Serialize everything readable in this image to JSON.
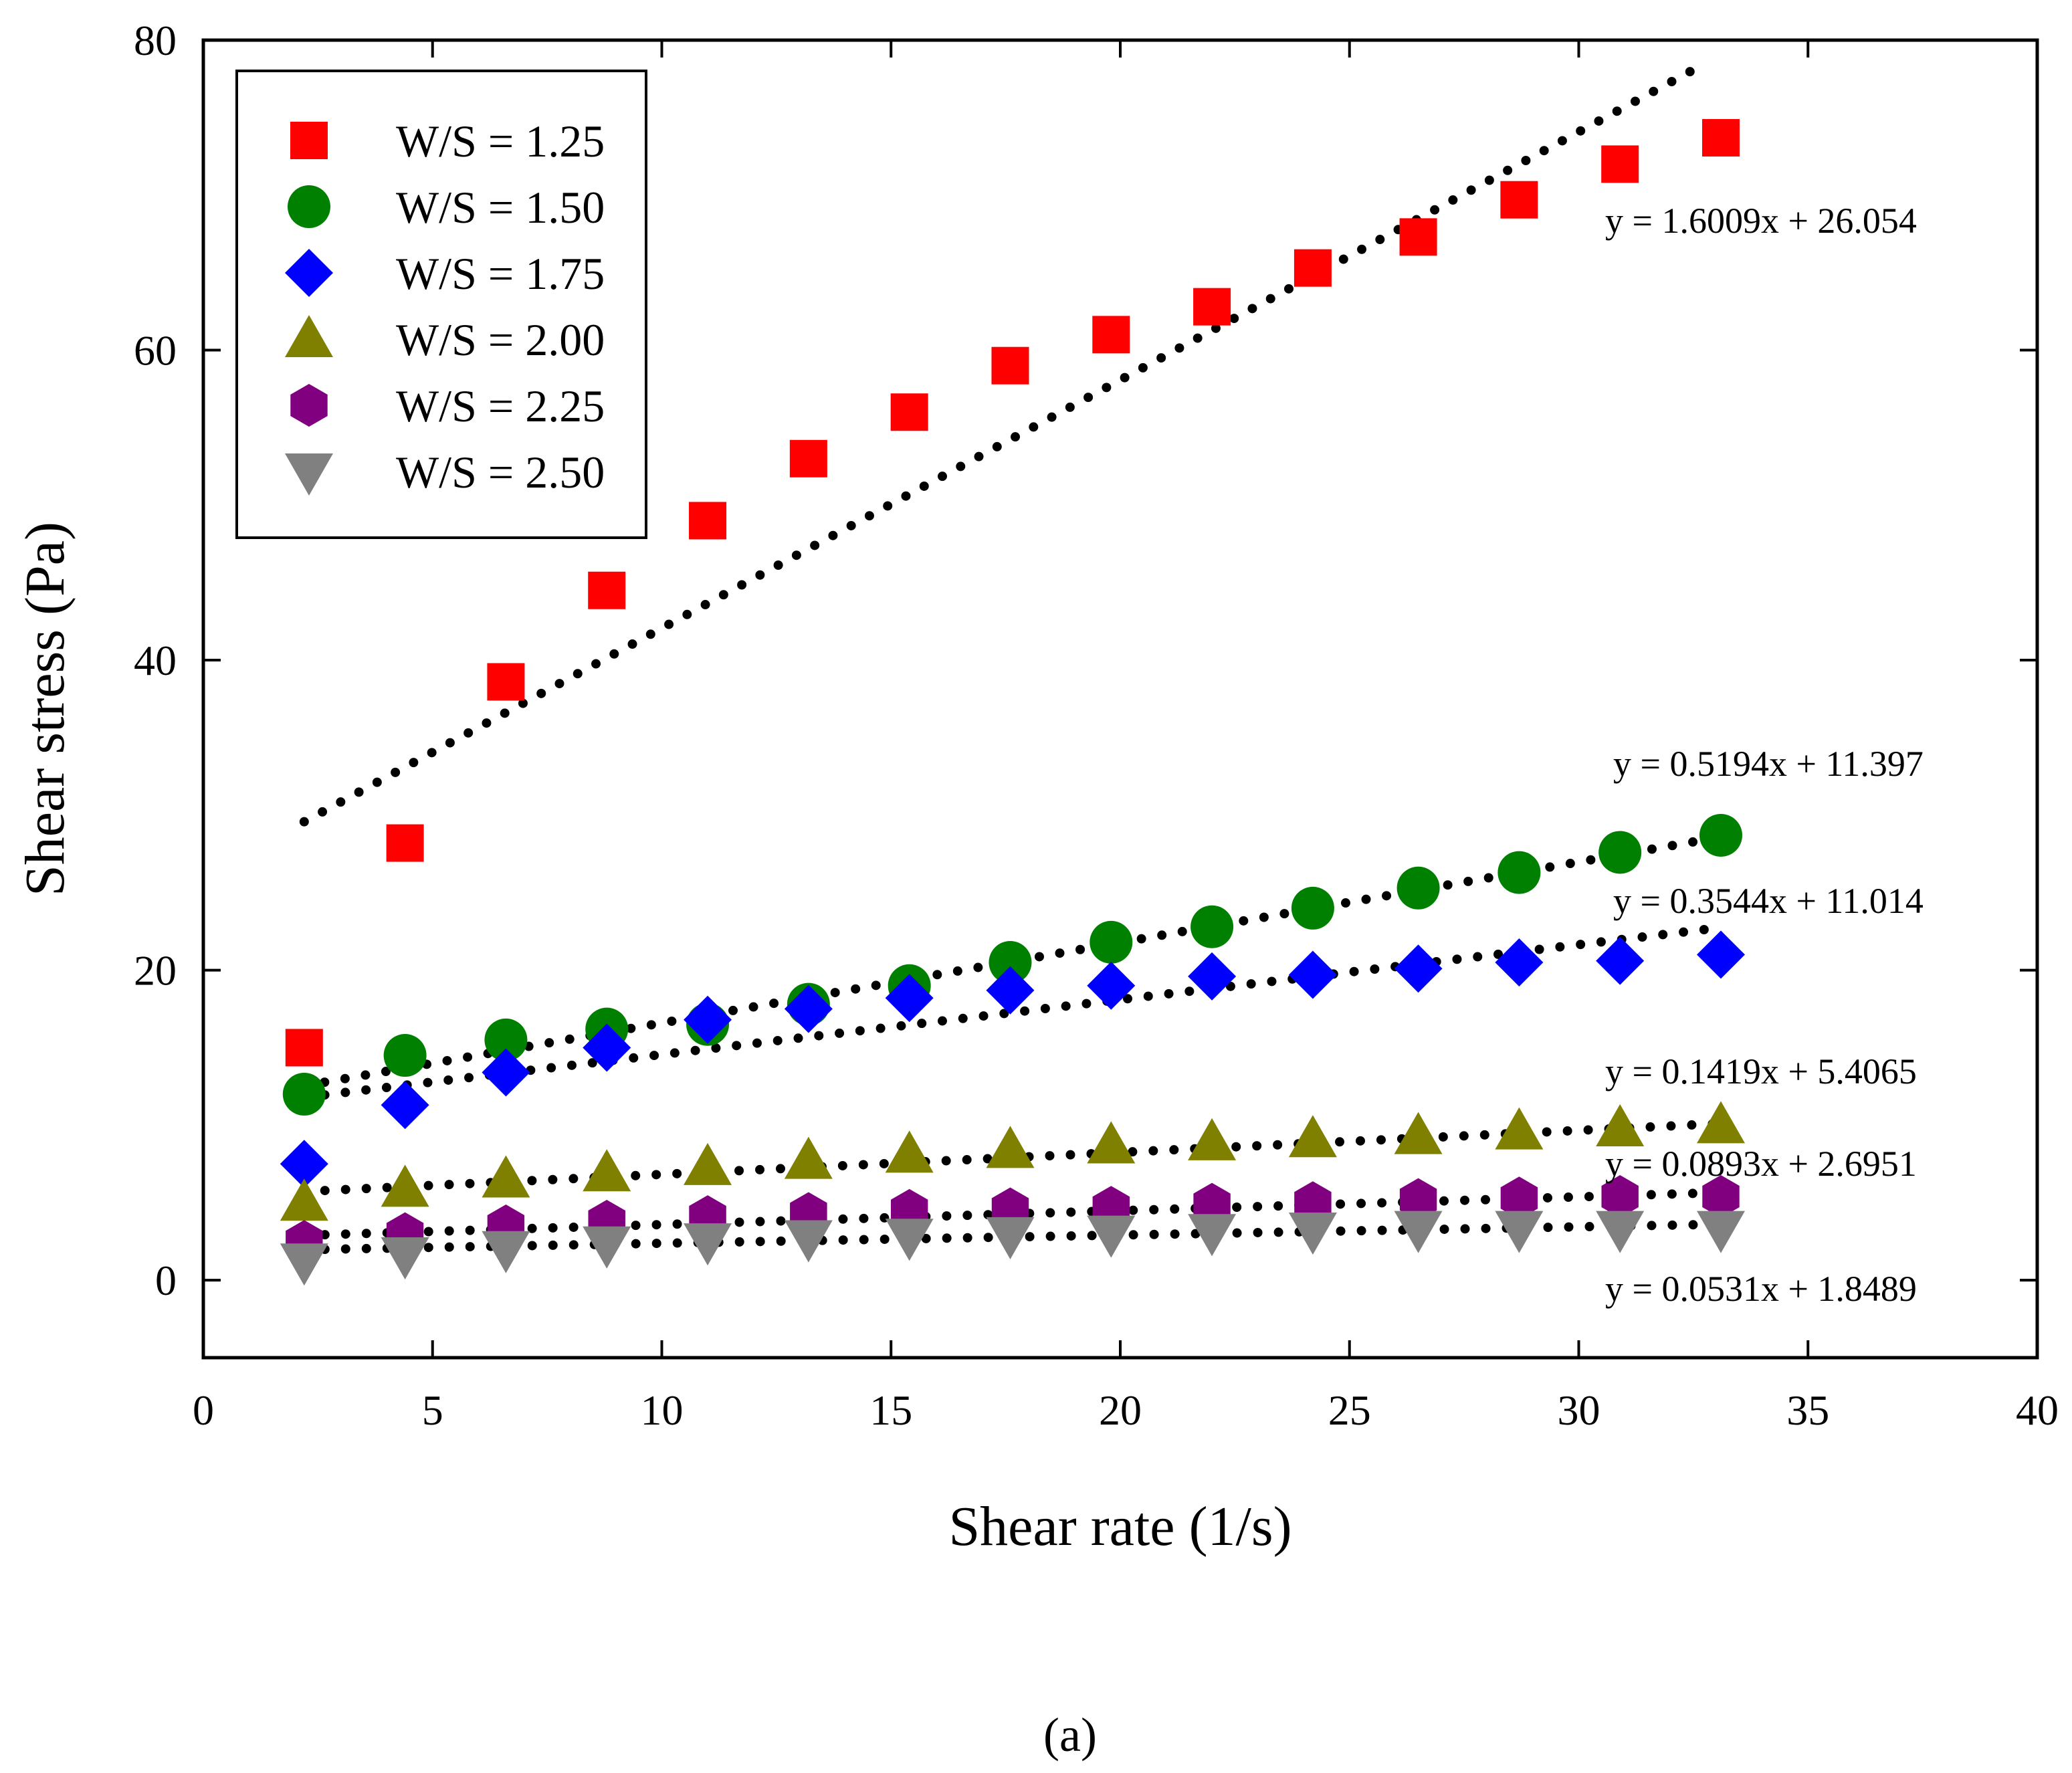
{
  "chart_data": {
    "type": "scatter",
    "xlabel": "Shear rate (1/s)",
    "ylabel": "Shear stress (Pa)",
    "xlim": [
      0,
      40
    ],
    "ylim": [
      -5,
      80
    ],
    "x_ticks": [
      "0",
      "5",
      "10",
      "15",
      "20",
      "25",
      "30",
      "35",
      "40"
    ],
    "y_ticks": [
      "0",
      "20",
      "40",
      "60",
      "80"
    ],
    "legend_position": "top-left",
    "grid": false,
    "x": [
      2.2,
      4.4,
      6.6,
      8.8,
      11.0,
      13.2,
      15.4,
      17.6,
      19.8,
      22.0,
      24.2,
      26.5,
      28.7,
      30.9,
      33.1
    ],
    "series": [
      {
        "name": "W/S = 1.25",
        "marker": "square",
        "color": "#ff0000",
        "values": [
          15.0,
          28.2,
          38.6,
          44.5,
          49.0,
          53.0,
          56.0,
          59.0,
          61.0,
          62.8,
          65.3,
          67.3,
          69.7,
          72.0,
          73.7
        ],
        "fit": {
          "slope": 1.6009,
          "intercept": 26.054,
          "x_range": [
            2.2,
            32.8
          ],
          "label": "y = 1.6009x + 26.054"
        }
      },
      {
        "name": "W/S = 1.50",
        "marker": "circle",
        "color": "#008000",
        "values": [
          12.0,
          14.5,
          15.5,
          16.2,
          16.5,
          17.8,
          19.0,
          20.5,
          21.8,
          22.8,
          24.0,
          25.3,
          26.3,
          27.6,
          28.7
        ],
        "fit": {
          "slope": 0.5194,
          "intercept": 11.397,
          "x_range": [
            2.2,
            33.1
          ],
          "label": "y = 0.5194x + 11.397"
        }
      },
      {
        "name": "W/S = 1.75",
        "marker": "diamond",
        "color": "#0000ff",
        "values": [
          7.5,
          11.3,
          13.4,
          15.0,
          16.8,
          17.5,
          18.2,
          18.7,
          19.0,
          19.6,
          19.7,
          20.1,
          20.5,
          20.6,
          21.0
        ],
        "fit": {
          "slope": 0.3544,
          "intercept": 11.014,
          "x_range": [
            2.2,
            32.8
          ],
          "label": "y = 0.3544x + 11.014"
        }
      },
      {
        "name": "W/S = 2.00",
        "marker": "triangle-up",
        "color": "#808000",
        "values": [
          5.0,
          5.9,
          6.5,
          6.9,
          7.3,
          7.7,
          8.1,
          8.4,
          8.7,
          8.9,
          9.1,
          9.3,
          9.6,
          9.8,
          10.0
        ],
        "fit": {
          "slope": 0.1419,
          "intercept": 5.4065,
          "x_range": [
            2.2,
            33.1
          ],
          "label": "y = 0.1419x + 5.4065"
        }
      },
      {
        "name": "W/S = 2.25",
        "marker": "hexagon",
        "color": "#800080",
        "values": [
          2.5,
          3.0,
          3.5,
          3.8,
          4.1,
          4.3,
          4.5,
          4.6,
          4.7,
          4.9,
          5.0,
          5.2,
          5.3,
          5.4,
          5.4
        ],
        "fit": {
          "slope": 0.0893,
          "intercept": 2.6951,
          "x_range": [
            2.2,
            33.1
          ],
          "label": "y = 0.0893x + 2.6951"
        }
      },
      {
        "name": "W/S = 2.50",
        "marker": "triangle-down",
        "color": "#808080",
        "values": [
          1.2,
          1.6,
          2.0,
          2.3,
          2.5,
          2.7,
          2.8,
          2.9,
          3.0,
          3.1,
          3.2,
          3.3,
          3.3,
          3.3,
          3.3
        ],
        "fit": {
          "slope": 0.0531,
          "intercept": 1.8489,
          "x_range": [
            2.2,
            33.1
          ],
          "label": "y = 0.0531x + 1.8489"
        }
      }
    ]
  },
  "caption": "(a)"
}
